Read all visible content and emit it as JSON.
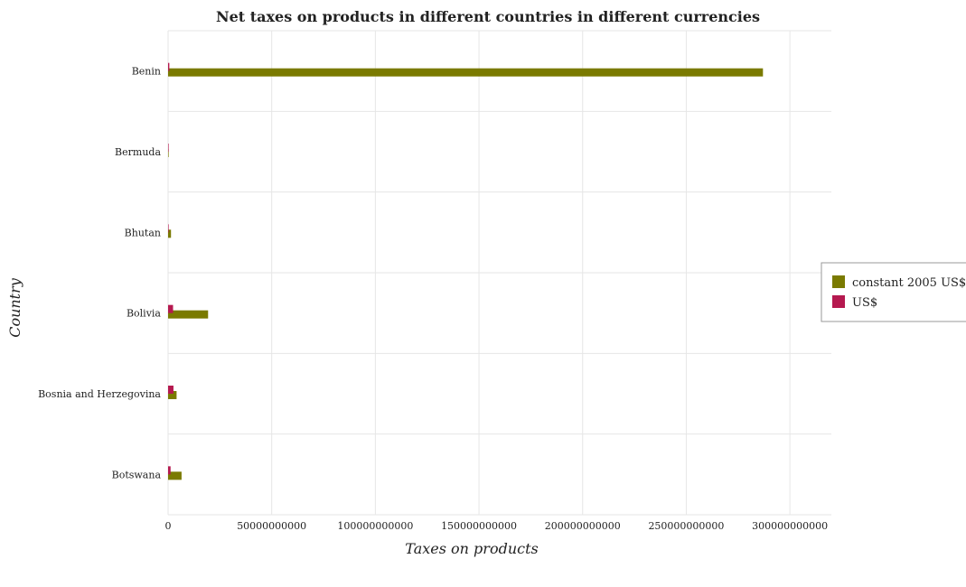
{
  "chart_data": {
    "type": "bar",
    "orientation": "horizontal",
    "title": "Net taxes on products in different countries in different currencies",
    "xlabel": "Taxes on products",
    "ylabel": "Country",
    "categories": [
      "Benin",
      "Bermuda",
      "Bhutan",
      "Bolivia",
      "Bosnia and Herzegovina",
      "Botswana"
    ],
    "series": [
      {
        "name": "constant 2005 US$",
        "color": "#7a7a00",
        "values": [
          287000000000,
          200000000,
          1400000000,
          19300000000,
          4100000000,
          6500000000
        ]
      },
      {
        "name": "US$",
        "color": "#b5194f",
        "values": [
          600000000,
          200000000,
          30000000,
          2400000000,
          2600000000,
          1200000000
        ]
      }
    ],
    "xlim": [
      0,
      320000000000
    ],
    "xticks": [
      0,
      50000000000,
      100000000000,
      150000000000,
      200000000000,
      250000000000,
      300000000000
    ],
    "xtick_labels": [
      "0",
      "50000000000",
      "100000000000",
      "150000000000",
      "200000000000",
      "250000000000",
      "300000000000"
    ],
    "grid": true,
    "legend_position": "right"
  }
}
